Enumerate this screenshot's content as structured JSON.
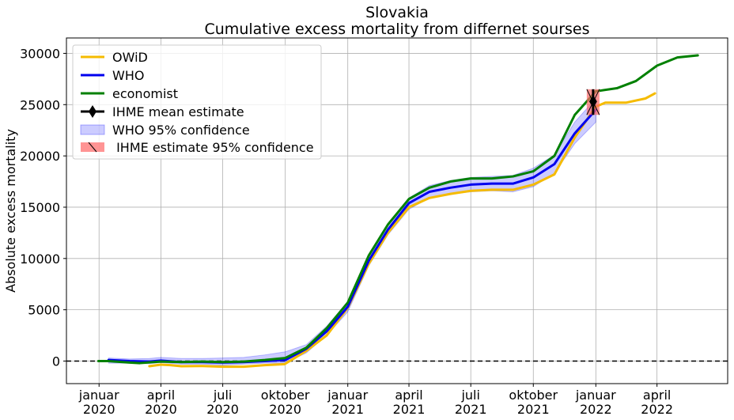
{
  "chart_data": {
    "type": "line",
    "title": "Slovakia",
    "subtitle": "Cumulative excess mortality from differnet sourses",
    "xlabel": "",
    "ylabel": "Absolute excess mortality",
    "ylim": [
      -2200,
      31500
    ],
    "xlim": [
      "2019-11-14",
      "2022-07-14"
    ],
    "grid": true,
    "legend_position": "top-left",
    "x_ticks": [
      {
        "date": "2020-01-01",
        "line1": "januar",
        "line2": "2020"
      },
      {
        "date": "2020-04-01",
        "line1": "april",
        "line2": "2020"
      },
      {
        "date": "2020-07-01",
        "line1": "juli",
        "line2": "2020"
      },
      {
        "date": "2020-10-01",
        "line1": "oktober",
        "line2": "2020"
      },
      {
        "date": "2021-01-01",
        "line1": "januar",
        "line2": "2021"
      },
      {
        "date": "2021-04-01",
        "line1": "april",
        "line2": "2021"
      },
      {
        "date": "2021-07-01",
        "line1": "juli",
        "line2": "2021"
      },
      {
        "date": "2021-10-01",
        "line1": "oktober",
        "line2": "2021"
      },
      {
        "date": "2022-01-01",
        "line1": "januar",
        "line2": "2022"
      },
      {
        "date": "2022-04-01",
        "line1": "april",
        "line2": "2022"
      }
    ],
    "y_ticks": [
      0,
      5000,
      10000,
      15000,
      20000,
      25000,
      30000
    ],
    "zero_line": {
      "y": 0,
      "style": "dashed",
      "color": "#000000"
    },
    "series": [
      {
        "name": "OWiD",
        "color": "#f5bb00",
        "points": [
          [
            "2020-03-15",
            -500
          ],
          [
            "2020-04-01",
            -350
          ],
          [
            "2020-04-15",
            -400
          ],
          [
            "2020-05-01",
            -500
          ],
          [
            "2020-06-01",
            -480
          ],
          [
            "2020-07-01",
            -550
          ],
          [
            "2020-08-01",
            -550
          ],
          [
            "2020-09-01",
            -400
          ],
          [
            "2020-09-30",
            -300
          ],
          [
            "2020-10-15",
            300
          ],
          [
            "2020-11-01",
            1000
          ],
          [
            "2020-12-01",
            2500
          ],
          [
            "2021-01-01",
            5200
          ],
          [
            "2021-02-01",
            9500
          ],
          [
            "2021-03-01",
            12500
          ],
          [
            "2021-04-01",
            15000
          ],
          [
            "2021-05-01",
            15900
          ],
          [
            "2021-06-01",
            16300
          ],
          [
            "2021-07-01",
            16600
          ],
          [
            "2021-08-01",
            16700
          ],
          [
            "2021-09-01",
            16700
          ],
          [
            "2021-10-01",
            17200
          ],
          [
            "2021-11-01",
            18200
          ],
          [
            "2021-12-01",
            21800
          ],
          [
            "2022-01-01",
            24800
          ],
          [
            "2022-01-15",
            25200
          ],
          [
            "2022-02-15",
            25200
          ],
          [
            "2022-03-15",
            25600
          ],
          [
            "2022-03-29",
            26100
          ]
        ]
      },
      {
        "name": "WHO",
        "color": "#0000ee",
        "points": [
          [
            "2020-01-15",
            100
          ],
          [
            "2020-02-15",
            0
          ],
          [
            "2020-03-15",
            -50
          ],
          [
            "2020-04-01",
            50
          ],
          [
            "2020-05-01",
            -100
          ],
          [
            "2020-06-01",
            -100
          ],
          [
            "2020-07-01",
            -150
          ],
          [
            "2020-08-01",
            -100
          ],
          [
            "2020-09-01",
            0
          ],
          [
            "2020-10-01",
            100
          ],
          [
            "2020-11-01",
            1200
          ],
          [
            "2020-12-01",
            2900
          ],
          [
            "2021-01-01",
            5300
          ],
          [
            "2021-02-01",
            9800
          ],
          [
            "2021-03-01",
            12800
          ],
          [
            "2021-04-01",
            15400
          ],
          [
            "2021-05-01",
            16500
          ],
          [
            "2021-06-01",
            16900
          ],
          [
            "2021-07-01",
            17200
          ],
          [
            "2021-08-01",
            17300
          ],
          [
            "2021-09-01",
            17300
          ],
          [
            "2021-10-01",
            17900
          ],
          [
            "2021-11-01",
            19200
          ],
          [
            "2021-12-01",
            22200
          ],
          [
            "2022-01-01",
            24500
          ]
        ]
      },
      {
        "name": "economist",
        "color": "#008000",
        "points": [
          [
            "2019-12-31",
            0
          ],
          [
            "2020-01-15",
            0
          ],
          [
            "2020-02-15",
            -150
          ],
          [
            "2020-03-01",
            -200
          ],
          [
            "2020-04-01",
            -50
          ],
          [
            "2020-05-01",
            -100
          ],
          [
            "2020-06-01",
            -50
          ],
          [
            "2020-07-01",
            -100
          ],
          [
            "2020-08-01",
            -50
          ],
          [
            "2020-09-01",
            100
          ],
          [
            "2020-10-01",
            300
          ],
          [
            "2020-11-01",
            1300
          ],
          [
            "2020-12-01",
            3200
          ],
          [
            "2021-01-01",
            5700
          ],
          [
            "2021-02-01",
            10300
          ],
          [
            "2021-03-01",
            13300
          ],
          [
            "2021-04-01",
            15800
          ],
          [
            "2021-05-01",
            16900
          ],
          [
            "2021-06-01",
            17500
          ],
          [
            "2021-07-01",
            17800
          ],
          [
            "2021-08-01",
            17800
          ],
          [
            "2021-09-01",
            18000
          ],
          [
            "2021-10-01",
            18500
          ],
          [
            "2021-11-01",
            20000
          ],
          [
            "2021-12-01",
            24000
          ],
          [
            "2022-01-01",
            26300
          ],
          [
            "2022-02-01",
            26600
          ],
          [
            "2022-03-01",
            27300
          ],
          [
            "2022-04-01",
            28800
          ],
          [
            "2022-05-01",
            29600
          ],
          [
            "2022-05-31",
            29800
          ]
        ]
      }
    ],
    "confidence_band": {
      "name": "WHO 95% confidence",
      "color": "#0000ff",
      "points": [
        [
          "2020-01-15",
          -200,
          300
        ],
        [
          "2020-02-15",
          -200,
          200
        ],
        [
          "2020-03-15",
          -250,
          250
        ],
        [
          "2020-04-01",
          -150,
          350
        ],
        [
          "2020-05-01",
          -300,
          250
        ],
        [
          "2020-06-01",
          -300,
          250
        ],
        [
          "2020-07-01",
          -400,
          300
        ],
        [
          "2020-08-01",
          -300,
          350
        ],
        [
          "2020-09-01",
          -200,
          600
        ],
        [
          "2020-10-01",
          -200,
          900
        ],
        [
          "2020-11-01",
          800,
          1600
        ],
        [
          "2020-12-01",
          2500,
          3400
        ],
        [
          "2021-01-01",
          4800,
          5800
        ],
        [
          "2021-02-01",
          9300,
          10300
        ],
        [
          "2021-03-01",
          12300,
          13300
        ],
        [
          "2021-04-01",
          14800,
          15900
        ],
        [
          "2021-05-01",
          15900,
          17100
        ],
        [
          "2021-06-01",
          16300,
          17600
        ],
        [
          "2021-07-01",
          16500,
          17900
        ],
        [
          "2021-08-01",
          16600,
          18000
        ],
        [
          "2021-09-01",
          16500,
          18100
        ],
        [
          "2021-10-01",
          17000,
          18800
        ],
        [
          "2021-11-01",
          18300,
          20100
        ],
        [
          "2021-12-01",
          21200,
          23300
        ],
        [
          "2022-01-01",
          23300,
          25600
        ]
      ]
    },
    "ihme": {
      "mean_label": "IHME mean estimate",
      "ci_label": " IHME estimate 95% confidence",
      "date": "2021-12-28",
      "mean": 25300,
      "lower": 24000,
      "upper": 26500,
      "color": "#000000",
      "ci_color": "#ff6666"
    }
  }
}
